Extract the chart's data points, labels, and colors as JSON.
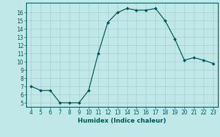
{
  "xlabel": "Humidex (Indice chaleur)",
  "x": [
    4,
    5,
    6,
    7,
    8,
    9,
    10,
    11,
    12,
    13,
    14,
    15,
    16,
    17,
    18,
    19,
    20,
    21,
    22,
    23
  ],
  "y": [
    7,
    6.5,
    6.5,
    5,
    5,
    5,
    6.5,
    11,
    14.8,
    16,
    16.5,
    16.3,
    16.3,
    16.5,
    15,
    12.8,
    10.2,
    10.5,
    10.2,
    9.8
  ],
  "xlim_min": 3.5,
  "xlim_max": 23.5,
  "ylim_min": 4.5,
  "ylim_max": 17.2,
  "yticks": [
    5,
    6,
    7,
    8,
    9,
    10,
    11,
    12,
    13,
    14,
    15,
    16
  ],
  "xticks": [
    4,
    5,
    6,
    7,
    8,
    9,
    10,
    11,
    12,
    13,
    14,
    15,
    16,
    17,
    18,
    19,
    20,
    21,
    22,
    23
  ],
  "line_color": "#005555",
  "marker_color": "#005555",
  "bg_color": "#c0e8e8",
  "grid_color": "#a8cccc",
  "spine_color": "#005555",
  "tick_label_color": "#005555",
  "xlabel_color": "#005555",
  "tick_fontsize": 5.5,
  "xlabel_fontsize": 6.5,
  "line_width": 0.9,
  "marker_size": 2.0
}
